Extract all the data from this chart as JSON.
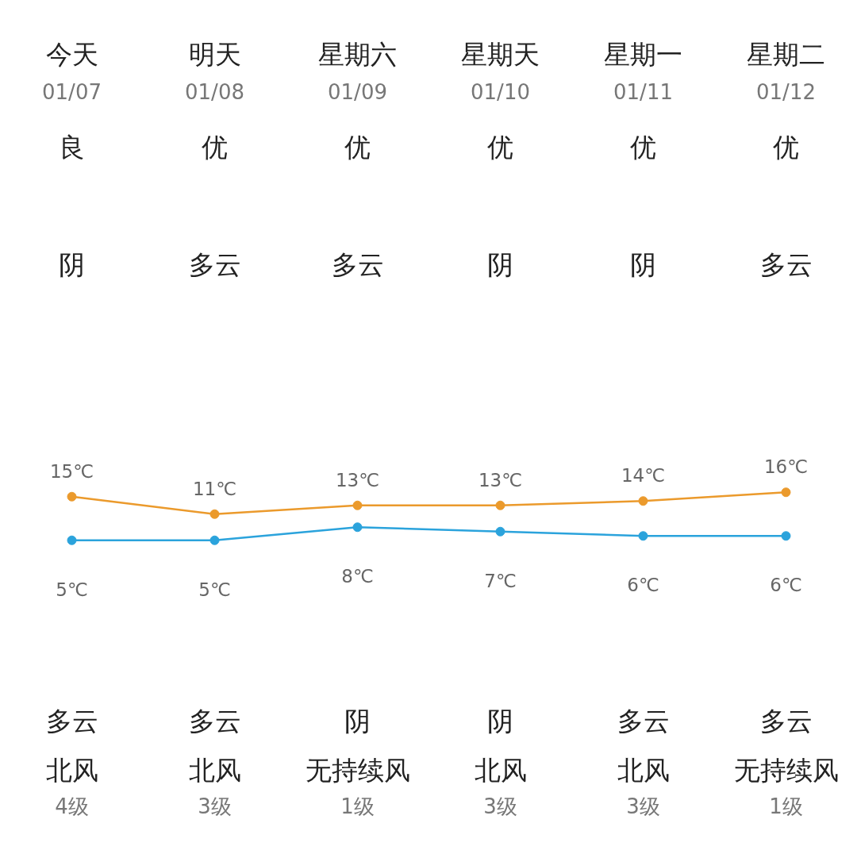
{
  "chart_data": {
    "type": "line",
    "categories": [
      "今天",
      "明天",
      "星期六",
      "星期天",
      "星期一",
      "星期二"
    ],
    "series": [
      {
        "color": "#eb9a2c",
        "values": [
          15,
          11,
          13,
          13,
          14,
          16
        ],
        "value_labels": [
          "15℃",
          "11℃",
          "13℃",
          "13℃",
          "14℃",
          "16℃"
        ]
      },
      {
        "color": "#2ba3dc",
        "values": [
          5,
          5,
          8,
          7,
          6,
          6
        ],
        "value_labels": [
          "5℃",
          "5℃",
          "8℃",
          "7℃",
          "6℃",
          "6℃"
        ]
      }
    ],
    "annotations": [
      "01/07",
      "良",
      "阴",
      "多云",
      "北风",
      "4级",
      "01/08",
      "优",
      "多云",
      "多云",
      "北风",
      "3级",
      "01/09",
      "优",
      "多云",
      "阴",
      "无持续风",
      "1级",
      "01/10",
      "优",
      "阴",
      "阴",
      "北风",
      "3级",
      "01/11",
      "优",
      "阴",
      "多云",
      "北风",
      "3级",
      "01/12",
      "优",
      "多云",
      "多云",
      "无持续风",
      "1级"
    ],
    "marker": "circle",
    "line_style": "solid"
  }
}
